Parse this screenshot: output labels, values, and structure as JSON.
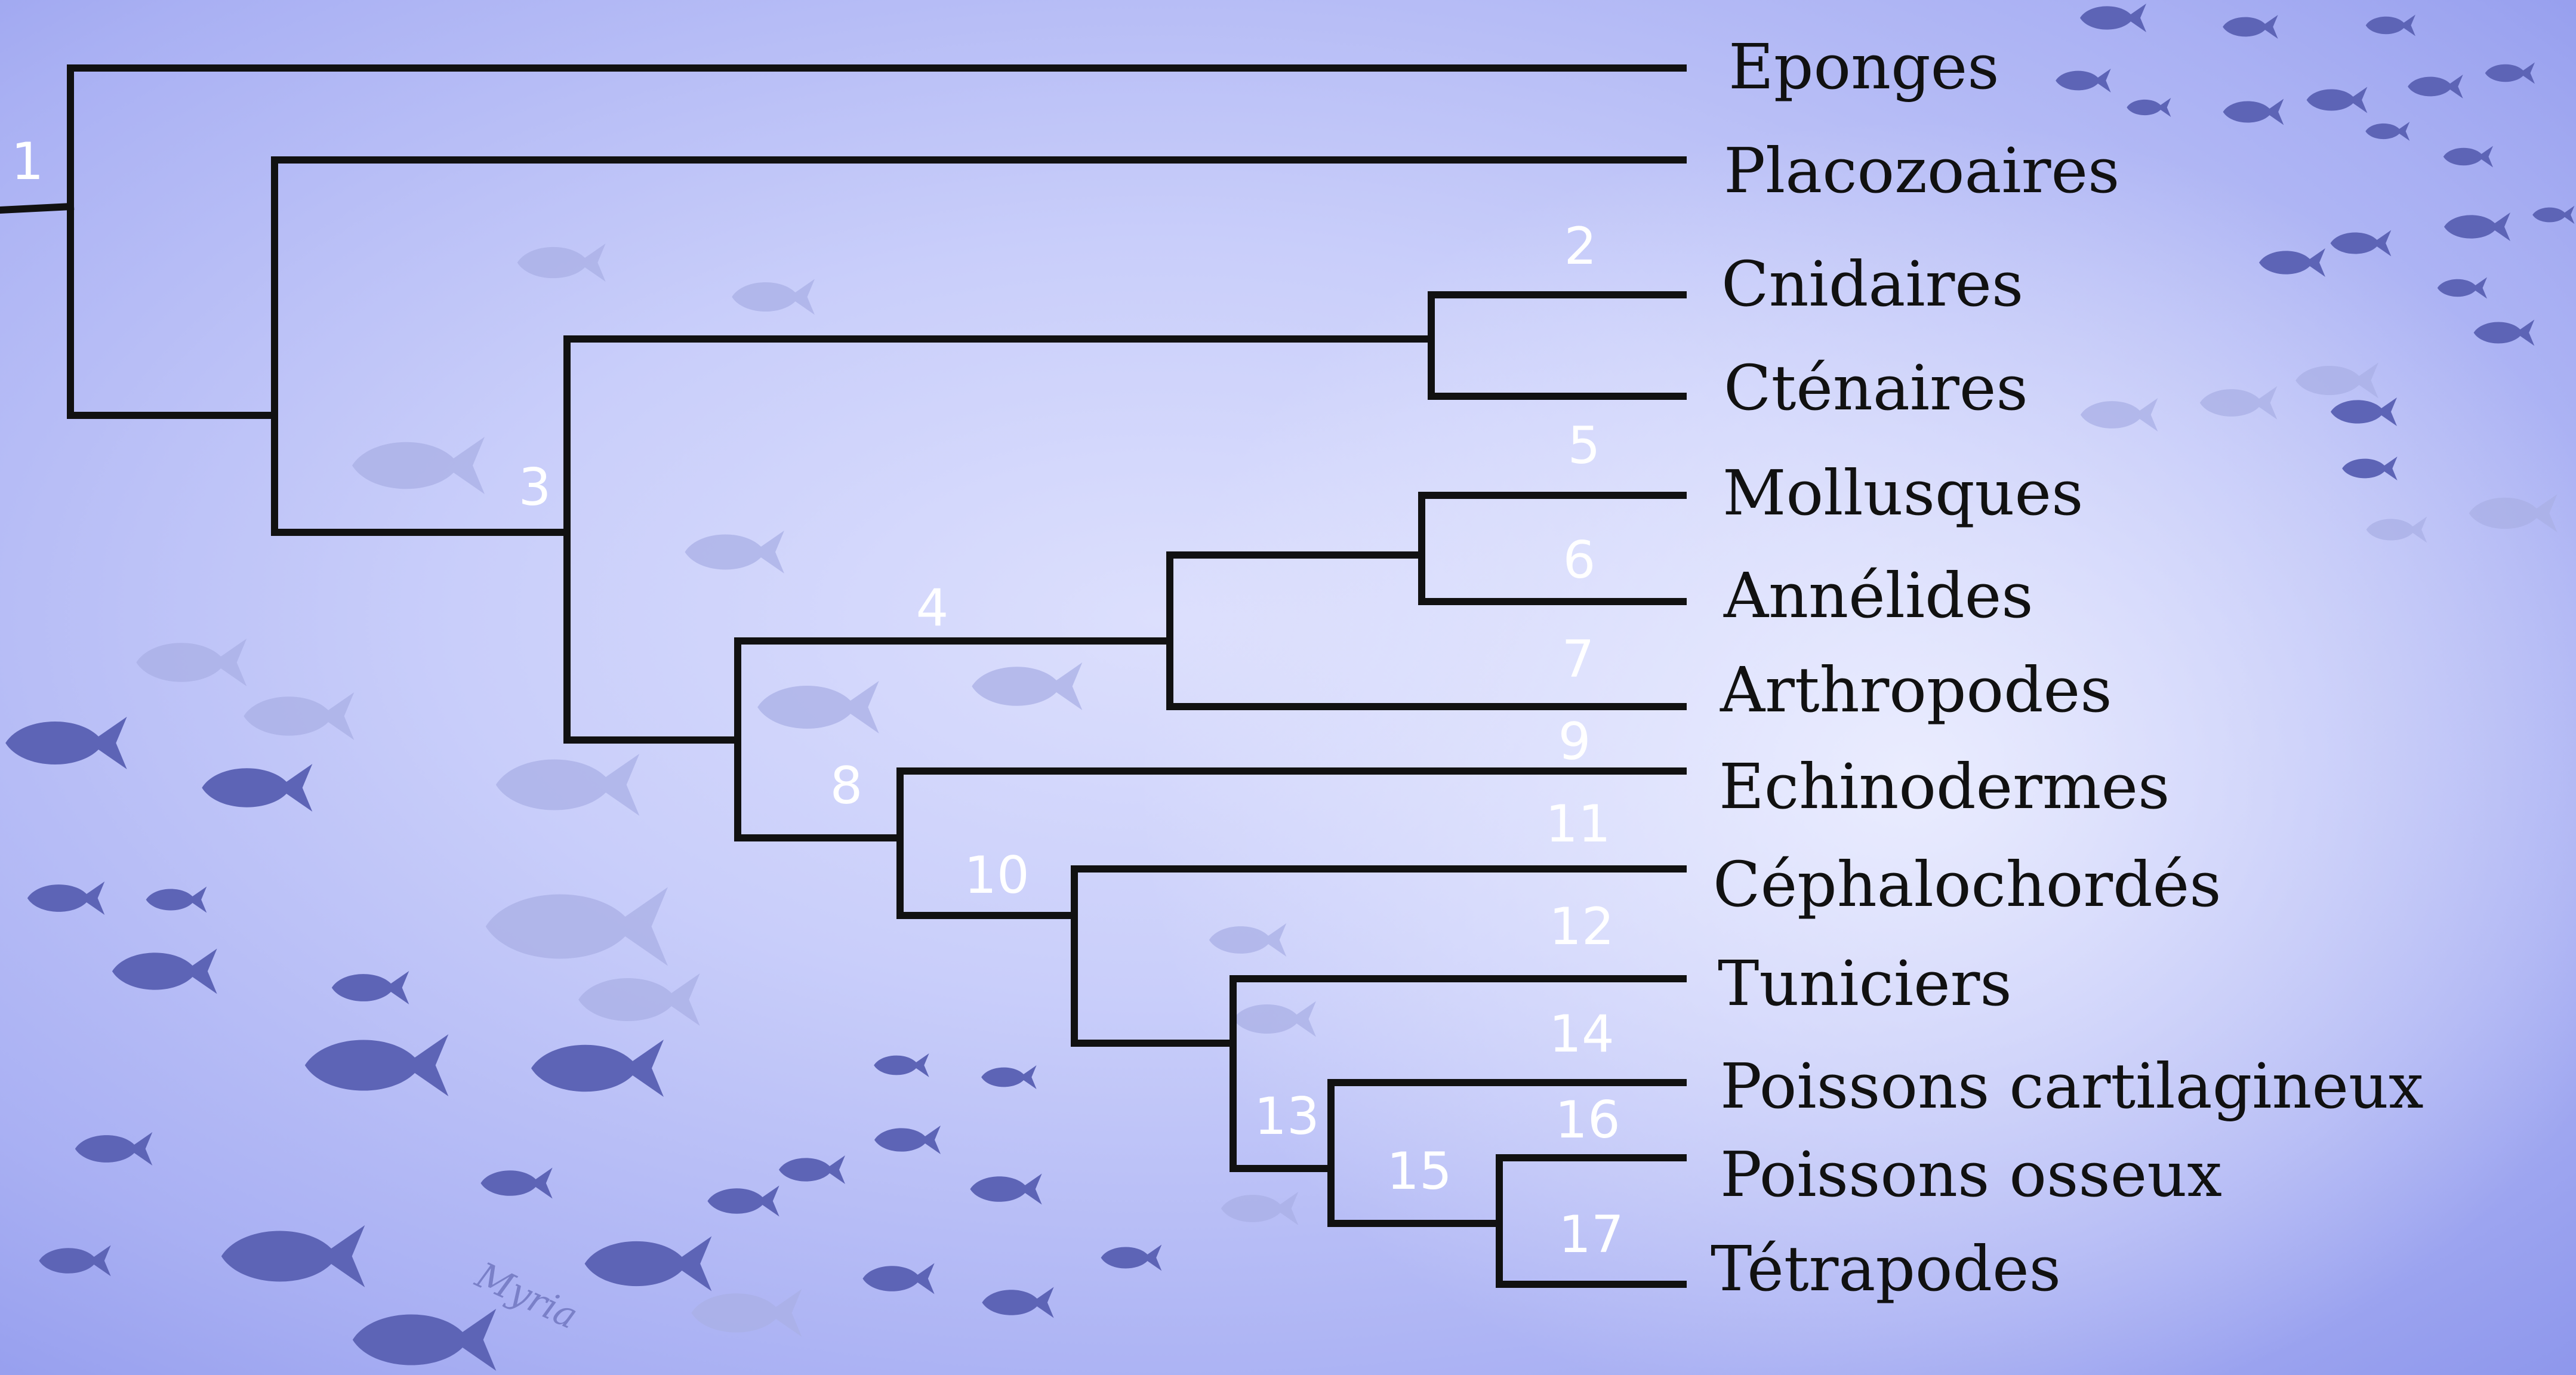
{
  "diagram": {
    "type": "phylogenetic-tree",
    "colors": {
      "background": "#c9cefa",
      "branches": "#111111",
      "node_labels": "#ffffff",
      "fish": "#5d64b6"
    },
    "taxa": [
      {
        "id": "eponges",
        "label": "Eponges"
      },
      {
        "id": "placozoaires",
        "label": "Placozoaires"
      },
      {
        "id": "cnidaires",
        "label": "Cnidaires"
      },
      {
        "id": "ctenaires",
        "label": "Cténaires"
      },
      {
        "id": "mollusques",
        "label": "Mollusques"
      },
      {
        "id": "annelides",
        "label": "Annélides"
      },
      {
        "id": "arthropodes",
        "label": "Arthropodes"
      },
      {
        "id": "echinodermes",
        "label": "Echinodermes"
      },
      {
        "id": "cephalochordes",
        "label": "Céphalochordés"
      },
      {
        "id": "tuniciers",
        "label": "Tuniciers"
      },
      {
        "id": "poissons-cartilagineux",
        "label": "Poissons cartilagineux"
      },
      {
        "id": "poissons-osseux",
        "label": "Poissons osseux"
      },
      {
        "id": "tetrapodes",
        "label": "Tétrapodes"
      }
    ],
    "node_labels": [
      "1",
      "2",
      "3",
      "4",
      "5",
      "6",
      "7",
      "8",
      "9",
      "10",
      "11",
      "12",
      "13",
      "14",
      "15",
      "16",
      "17"
    ],
    "signature": "Myria",
    "decoration": "school-of-fish-silhouettes"
  }
}
